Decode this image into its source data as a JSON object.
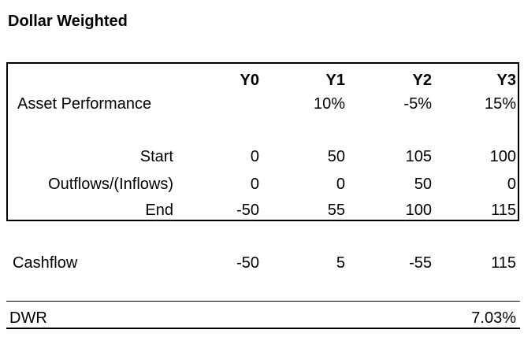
{
  "title": "Dollar Weighted",
  "headers": [
    "Y0",
    "Y1",
    "Y2",
    "Y3"
  ],
  "asset_performance": {
    "label": "Asset Performance",
    "values": [
      "",
      "10%",
      "-5%",
      "15%"
    ]
  },
  "start": {
    "label": "Start",
    "values": [
      "0",
      "50",
      "105",
      "100"
    ]
  },
  "flows": {
    "label": "Outflows/(Inflows)",
    "values": [
      "0",
      "0",
      "50",
      "0"
    ]
  },
  "end": {
    "label": "End",
    "values": [
      "-50",
      "55",
      "100",
      "115"
    ]
  },
  "cashflow": {
    "label": "Cashflow",
    "values": [
      "-50",
      "5",
      "-55",
      "115"
    ]
  },
  "dwr": {
    "label": "DWR",
    "value": "7.03%"
  }
}
